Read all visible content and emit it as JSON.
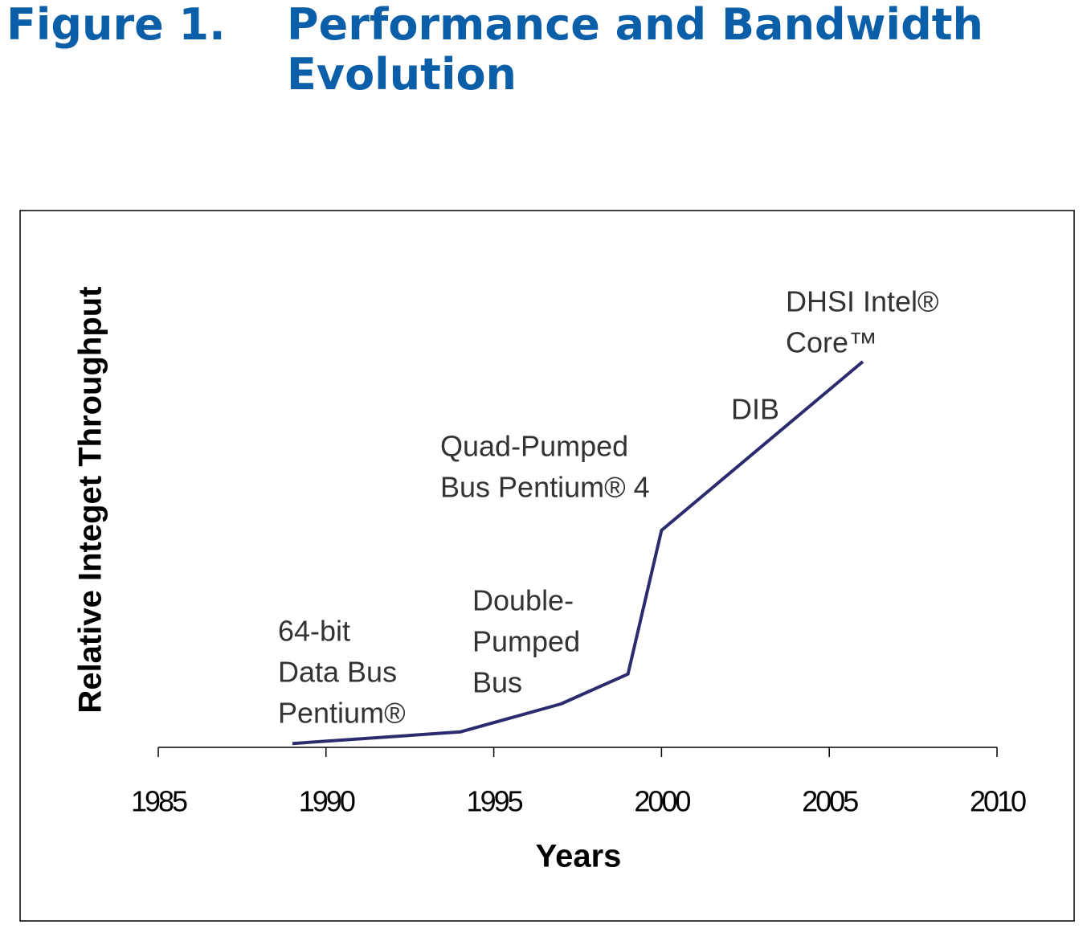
{
  "chart_data": {
    "type": "line",
    "figure_label": "Figure 1.",
    "title": "Performance and Bandwidth Evolution",
    "x_label": "Years",
    "y_label": "Relative Integet Throughput",
    "x": [
      1989,
      1994,
      1997,
      1999,
      2000,
      2006
    ],
    "series": [
      {
        "color": "#2b2b6e",
        "values": [
          0.8,
          3.2,
          9,
          15.2,
          45,
          80
        ]
      }
    ],
    "xlim": [
      1985,
      2010
    ],
    "xticks": [
      1985,
      1990,
      1995,
      2000,
      2005,
      2010
    ],
    "ylim": [
      0,
      100
    ],
    "annotations": [
      [
        "64-bit",
        "Data Bus",
        "Pentium®"
      ],
      [
        "Double-",
        "Pumped",
        "Bus"
      ],
      [
        "Quad-Pumped",
        "Bus Pentium® 4"
      ],
      [
        "DIB"
      ],
      [
        "DHSI Intel®",
        "Core™"
      ]
    ]
  }
}
